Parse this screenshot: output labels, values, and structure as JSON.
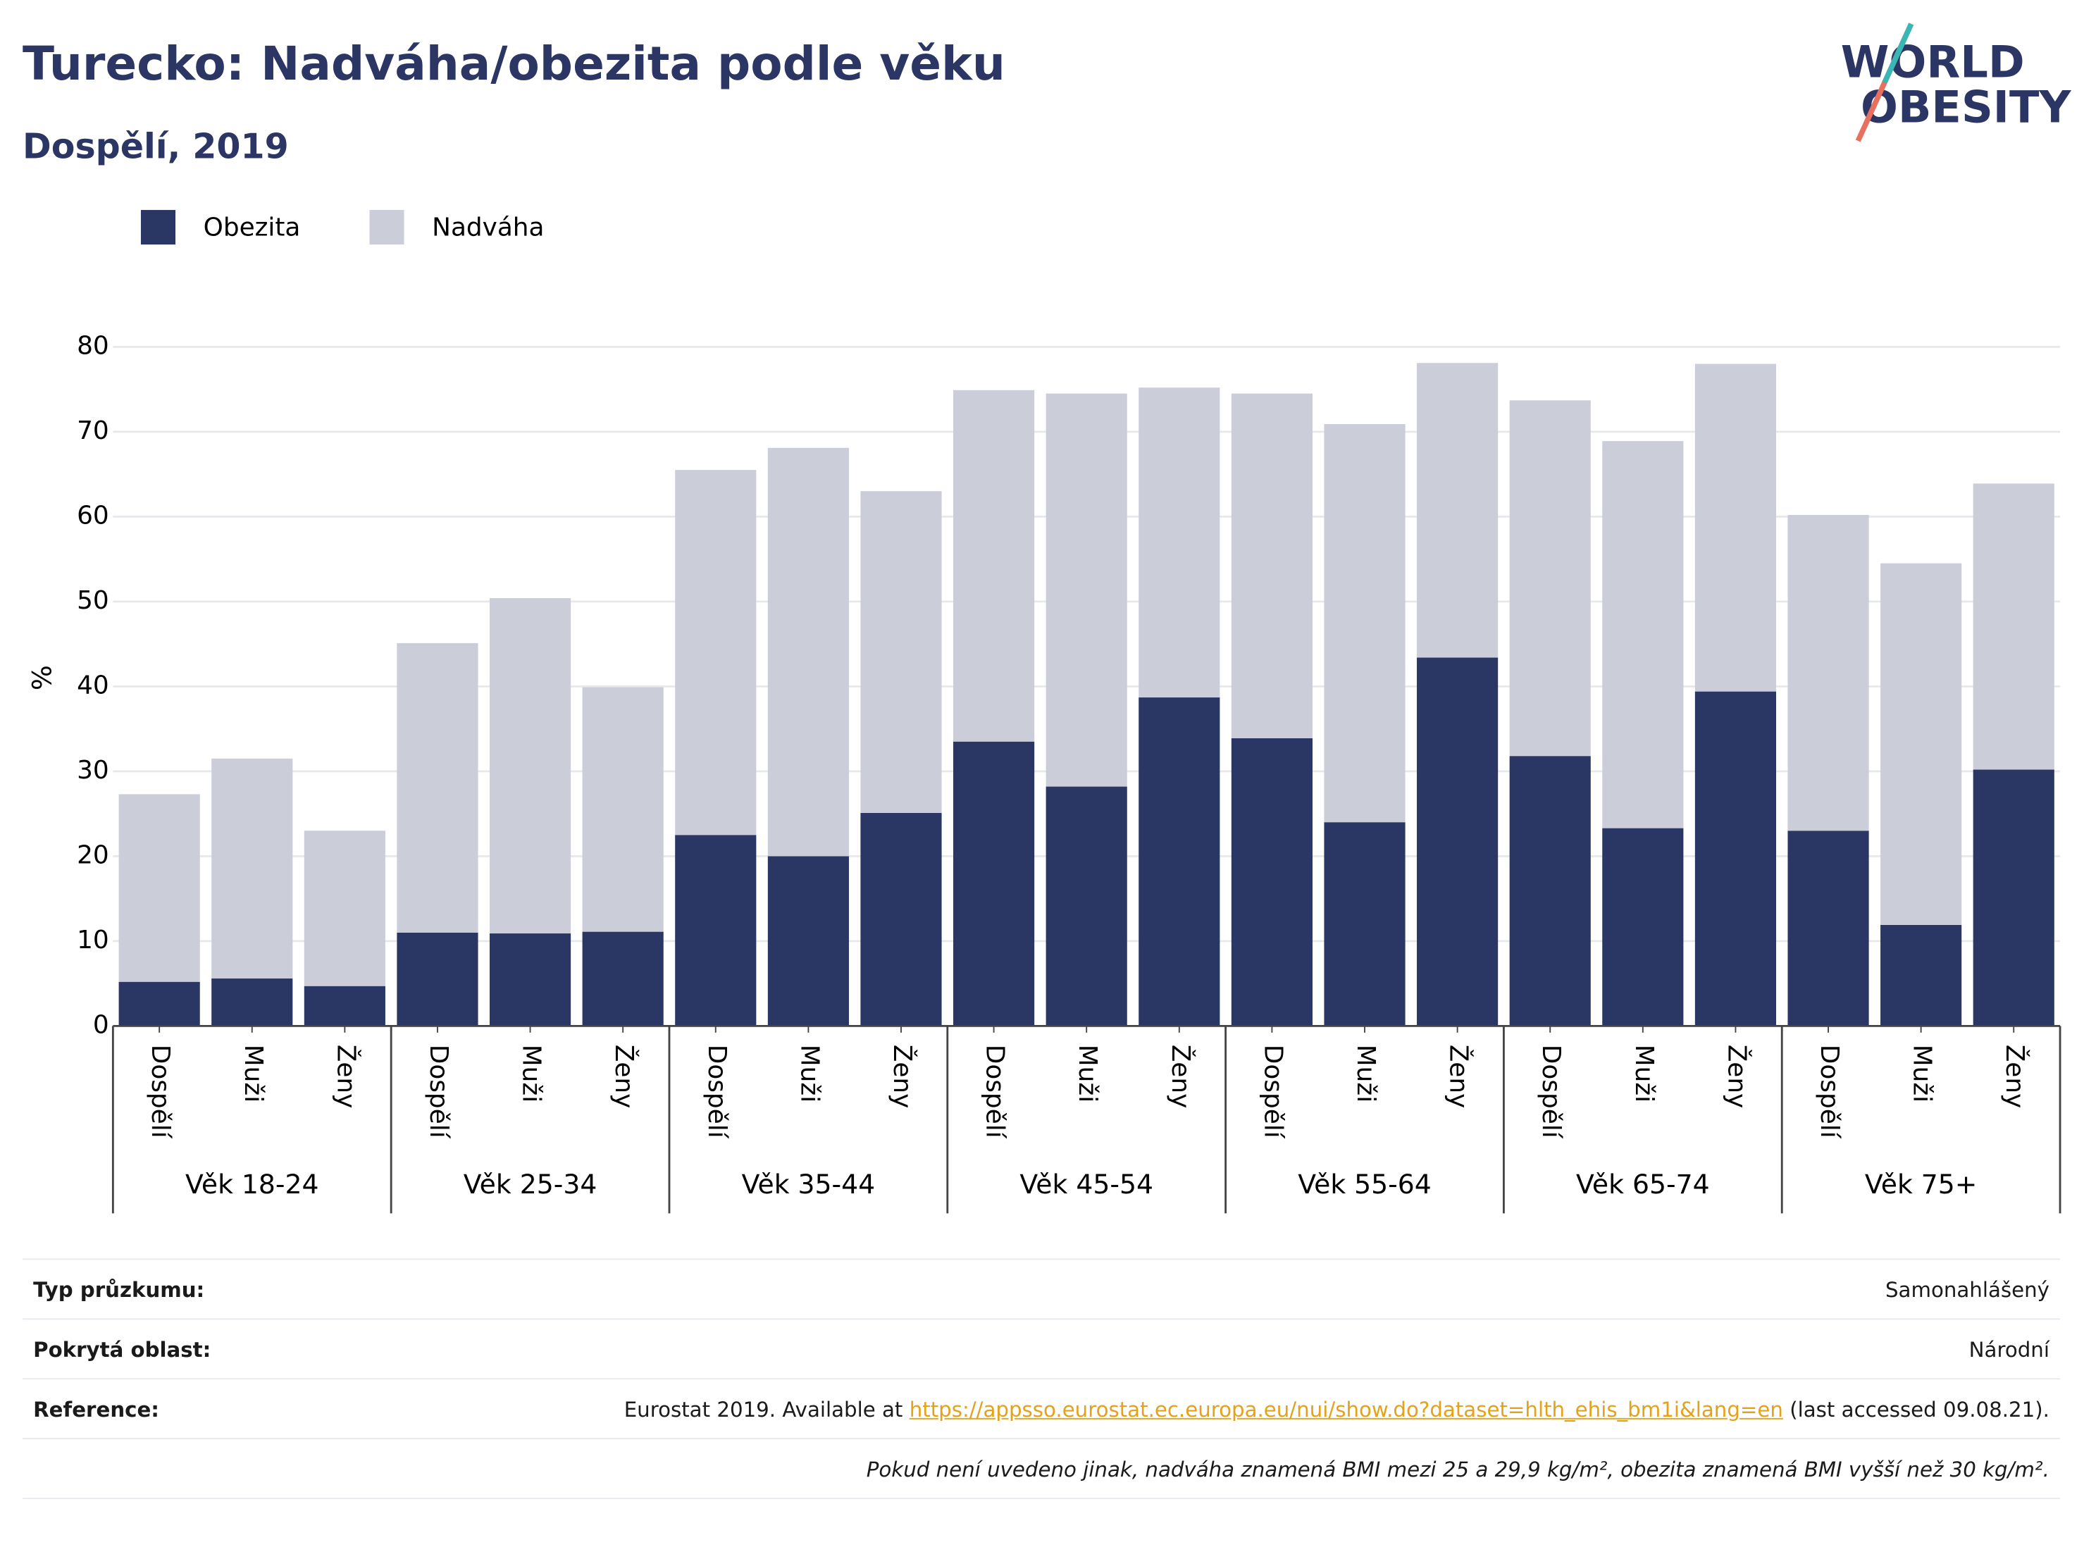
{
  "header": {
    "title": "Turecko: Nadváha/obezita podle věku",
    "subtitle": "Dospělí, 2019",
    "logo": [
      "WORLD",
      "OBESITY"
    ]
  },
  "chart_data": {
    "type": "stacked-bar",
    "ylabel": "%",
    "groups": [
      {
        "label": "Věk 18-24",
        "categories": [
          "Dospělí",
          "Muži",
          "Ženy"
        ]
      },
      {
        "label": "Věk 25-34",
        "categories": [
          "Dospělí",
          "Muži",
          "Ženy"
        ]
      },
      {
        "label": "Věk 35-44",
        "categories": [
          "Dospělí",
          "Muži",
          "Ženy"
        ]
      },
      {
        "label": "Věk 45-54",
        "categories": [
          "Dospělí",
          "Muži",
          "Ženy"
        ]
      },
      {
        "label": "Věk 55-64",
        "categories": [
          "Dospělí",
          "Muži",
          "Ženy"
        ]
      },
      {
        "label": "Věk 65-74",
        "categories": [
          "Dospělí",
          "Muži",
          "Ženy"
        ]
      },
      {
        "label": "Věk 75+",
        "categories": [
          "Dospělí",
          "Muži",
          "Ženy"
        ]
      }
    ],
    "series": [
      {
        "name": "Obezita",
        "color": "#2a3663",
        "values": [
          5.2,
          5.6,
          4.7,
          11.0,
          10.9,
          11.1,
          22.5,
          20.0,
          25.1,
          33.5,
          28.2,
          38.7,
          33.9,
          24.0,
          43.4,
          31.8,
          23.3,
          39.4,
          23.0,
          11.9,
          30.2
        ]
      },
      {
        "name": "Nadváha",
        "color": "#cbcdd9",
        "values": [
          22.1,
          25.9,
          18.3,
          34.1,
          39.5,
          28.8,
          43.0,
          48.1,
          37.9,
          41.4,
          46.3,
          36.5,
          40.6,
          46.9,
          34.7,
          41.9,
          45.6,
          38.6,
          37.2,
          42.6,
          33.7
        ]
      }
    ],
    "ylim": [
      0,
      80
    ],
    "yticks": [
      0,
      10,
      20,
      30,
      40,
      50,
      60,
      70,
      80
    ],
    "grid": true,
    "legend": "top-left"
  },
  "table": {
    "rows": [
      [
        "Typ průzkumu:",
        "Samonahlášený"
      ],
      [
        "Pokrytá oblast:",
        "Národní"
      ],
      [
        "Reference:",
        [
          "Eurostat 2019. Available at ",
          "https://appsso.eurostat.ec.europa.eu/nui/show.do?dataset=hlth_ehis_bm1i&lang=en",
          " (last accessed 09.08.21)."
        ]
      ]
    ],
    "note": "Pokud není uvedeno jinak, nadváha znamená BMI mezi 25 a 29,9 kg/m², obezita znamená BMI vyšší než 30 kg/m²."
  }
}
